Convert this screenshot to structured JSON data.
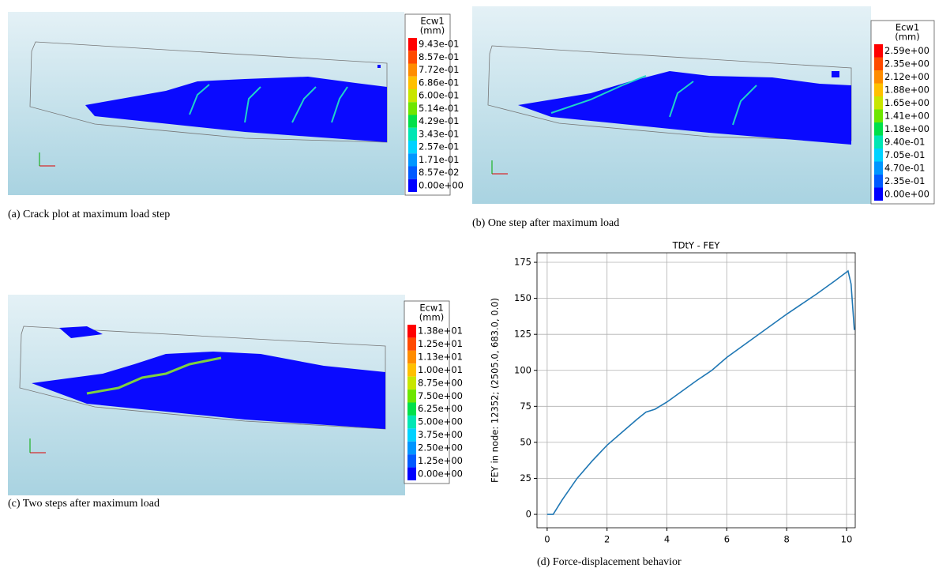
{
  "panels": [
    {
      "caption": "(a) Crack plot at maximum load step",
      "legend": {
        "title": "Ecw1",
        "unit": "(mm)",
        "labels": [
          "9.43e-01",
          "8.57e-01",
          "7.72e-01",
          "6.86e-01",
          "6.00e-01",
          "5.14e-01",
          "4.29e-01",
          "3.43e-01",
          "2.57e-01",
          "1.71e-01",
          "8.57e-02",
          "0.00e+00"
        ]
      }
    },
    {
      "caption": "(b) One step after maximum load",
      "legend": {
        "title": "Ecw1",
        "unit": "(mm)",
        "labels": [
          "2.59e+00",
          "2.35e+00",
          "2.12e+00",
          "1.88e+00",
          "1.65e+00",
          "1.41e+00",
          "1.18e+00",
          "9.40e-01",
          "7.05e-01",
          "4.70e-01",
          "2.35e-01",
          "0.00e+00"
        ]
      }
    },
    {
      "caption": "(c) Two steps after maximum load",
      "legend": {
        "title": "Ecw1",
        "unit": "(mm)",
        "labels": [
          "1.38e+01",
          "1.25e+01",
          "1.13e+01",
          "1.00e+01",
          "8.75e+00",
          "7.50e+00",
          "6.25e+00",
          "5.00e+00",
          "3.75e+00",
          "2.50e+00",
          "1.25e+00",
          "0.00e+00"
        ]
      }
    }
  ],
  "legend_colors": [
    "#ff0000",
    "#ff4a00",
    "#ff8c00",
    "#ffc000",
    "#c8e600",
    "#6ee600",
    "#00e04a",
    "#00e6b4",
    "#00d2ff",
    "#0096ff",
    "#005aff",
    "#0000ff"
  ],
  "chart_data": {
    "type": "line",
    "title": "TDtY - FEY",
    "caption": "(d) Force-displacement behavior",
    "y_label": "FEY in node: 12352; (2505.0, 683.0, 0.0)",
    "x": [
      0,
      0.2,
      0.5,
      1,
      1.5,
      2,
      2.5,
      3,
      3.3,
      3.6,
      4,
      5,
      5.5,
      6,
      7,
      8,
      9,
      9.6,
      10.05,
      10.15,
      10.26
    ],
    "series": [
      {
        "color": "#1f77b4",
        "values": [
          0,
          0,
          10,
          25,
          37,
          48,
          57,
          66,
          71,
          73,
          78,
          93,
          100,
          109,
          124,
          139,
          153,
          162,
          169,
          160,
          128
        ]
      }
    ],
    "xlim": [
      -0.34,
      10.29
    ],
    "ylim": [
      -9.3,
      181.6
    ],
    "xticks": [
      0,
      2,
      4,
      6,
      8,
      10
    ],
    "yticks": [
      0,
      25,
      50,
      75,
      100,
      125,
      150,
      175
    ],
    "grid": true
  }
}
